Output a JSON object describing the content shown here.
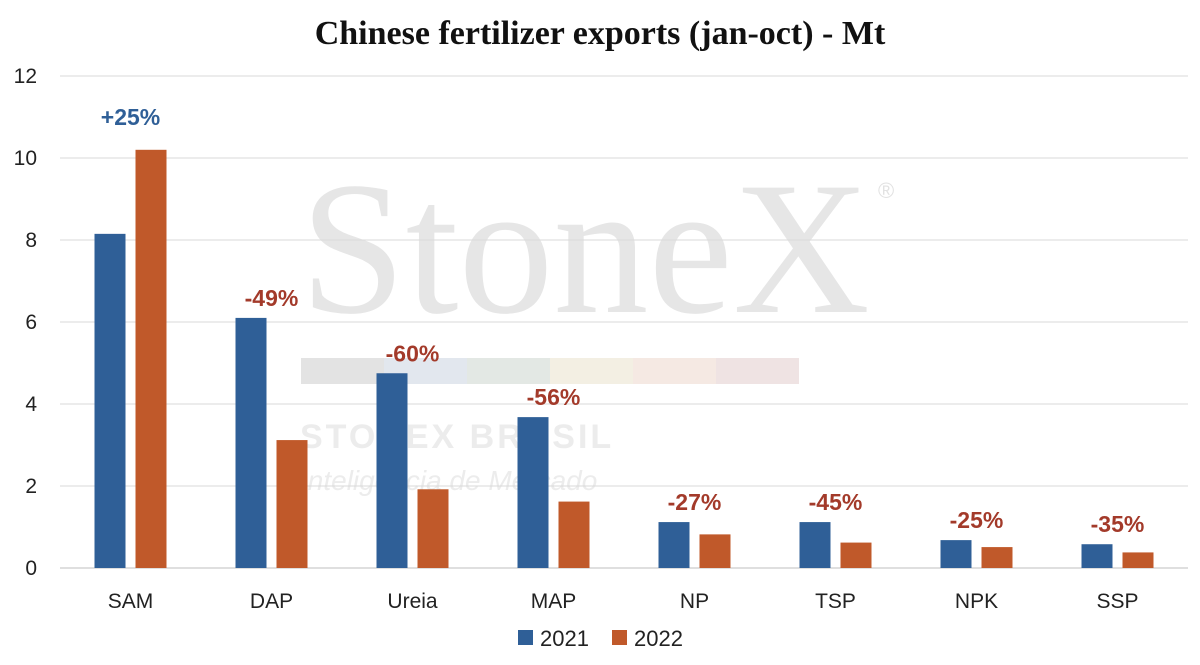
{
  "chart_data": {
    "type": "bar",
    "title": "Chinese fertilizer exports (jan-oct) - Mt",
    "xlabel": "",
    "ylabel": "",
    "ylim": [
      0,
      12
    ],
    "yticks": [
      0,
      2,
      4,
      6,
      8,
      10,
      12
    ],
    "grid": true,
    "legend_position": "bottom",
    "categories": [
      "SAM",
      "DAP",
      "Ureia",
      "MAP",
      "NP",
      "TSP",
      "NPK",
      "SSP"
    ],
    "series": [
      {
        "name": "2021",
        "color": "#2f5f97",
        "values": [
          8.15,
          6.1,
          4.75,
          3.68,
          1.12,
          1.12,
          0.68,
          0.58
        ]
      },
      {
        "name": "2022",
        "color": "#c0592a",
        "values": [
          10.2,
          3.12,
          1.92,
          1.62,
          0.82,
          0.62,
          0.51,
          0.38
        ]
      }
    ],
    "annotations": [
      {
        "category": "SAM",
        "label": "+25%",
        "color": "#2f5f97"
      },
      {
        "category": "DAP",
        "label": "-49%",
        "color": "#a33a2a"
      },
      {
        "category": "Ureia",
        "label": "-60%",
        "color": "#a33a2a"
      },
      {
        "category": "MAP",
        "label": "-56%",
        "color": "#a33a2a"
      },
      {
        "category": "NP",
        "label": "-27%",
        "color": "#a33a2a"
      },
      {
        "category": "TSP",
        "label": "-45%",
        "color": "#a33a2a"
      },
      {
        "category": "NPK",
        "label": "-25%",
        "color": "#a33a2a"
      },
      {
        "category": "SSP",
        "label": "-35%",
        "color": "#a33a2a"
      }
    ]
  },
  "watermark": {
    "brand": "StoneX",
    "registered": "®",
    "line1": "STONEX BRASIL",
    "line2": "Inteligência de Mercado",
    "stripe_colors": [
      "#e3e3e3",
      "#e2e7ee",
      "#e3e8e4",
      "#f3efe3",
      "#f5e9e3",
      "#efe3e3"
    ]
  }
}
